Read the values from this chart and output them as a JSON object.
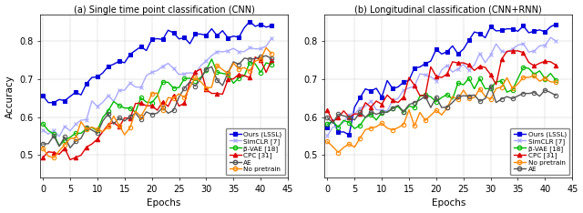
{
  "title_a": "(a) Single time point classification (CNN)",
  "title_b": "(b) Longitudinal classification (CNN+RNN)",
  "xlabel": "Epochs",
  "ylabel": "Accuracy",
  "xlim": [
    -1,
    45
  ],
  "ylim_a": [
    0.44,
    0.87
  ],
  "ylim_b": [
    0.44,
    0.87
  ],
  "xticks": [
    0,
    5,
    10,
    15,
    20,
    25,
    30,
    35,
    40,
    45
  ],
  "yticks": [
    0.5,
    0.6,
    0.7,
    0.8
  ],
  "colors": {
    "LSSL": "#0000dd",
    "SimCLR": "#aaaaff",
    "bVAE": "#00bb00",
    "CPC": "#dd0000",
    "AE": "#555555",
    "NoPretrain": "#ff8800"
  },
  "legend_a": [
    "Ours (LSSL)",
    "SimCLR [7]",
    "β-VAE [18]",
    "CPC [31]",
    "AE",
    "No pretrain"
  ],
  "legend_b": [
    "Ours (LSSL)",
    "SimCLR [7]",
    "β-VAE [18]",
    "CPC [31]",
    "No pretrain",
    "AE"
  ],
  "markers_a": [
    "s",
    "x",
    "o",
    "^",
    "o",
    "o"
  ],
  "markers_b": [
    "s",
    "x",
    "o",
    "^",
    "o",
    "o"
  ],
  "mcolors_a": [
    "#0000dd",
    "#aaaaff",
    "#00bb00",
    "#dd0000",
    "#555555",
    "#ff8800"
  ],
  "mcolors_b": [
    "#0000dd",
    "#aaaaff",
    "#00bb00",
    "#dd0000",
    "#ff8800",
    "#555555"
  ]
}
